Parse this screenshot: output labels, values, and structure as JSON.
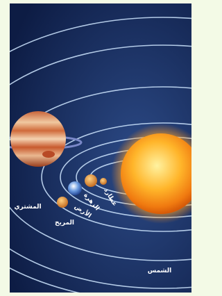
{
  "labels": {
    "mercury": "عطارد",
    "venus": "الزهرة",
    "earth": "الأرض",
    "mars": "المريخ",
    "jupiter": "المشتري",
    "sun": "الشمس"
  }
}
